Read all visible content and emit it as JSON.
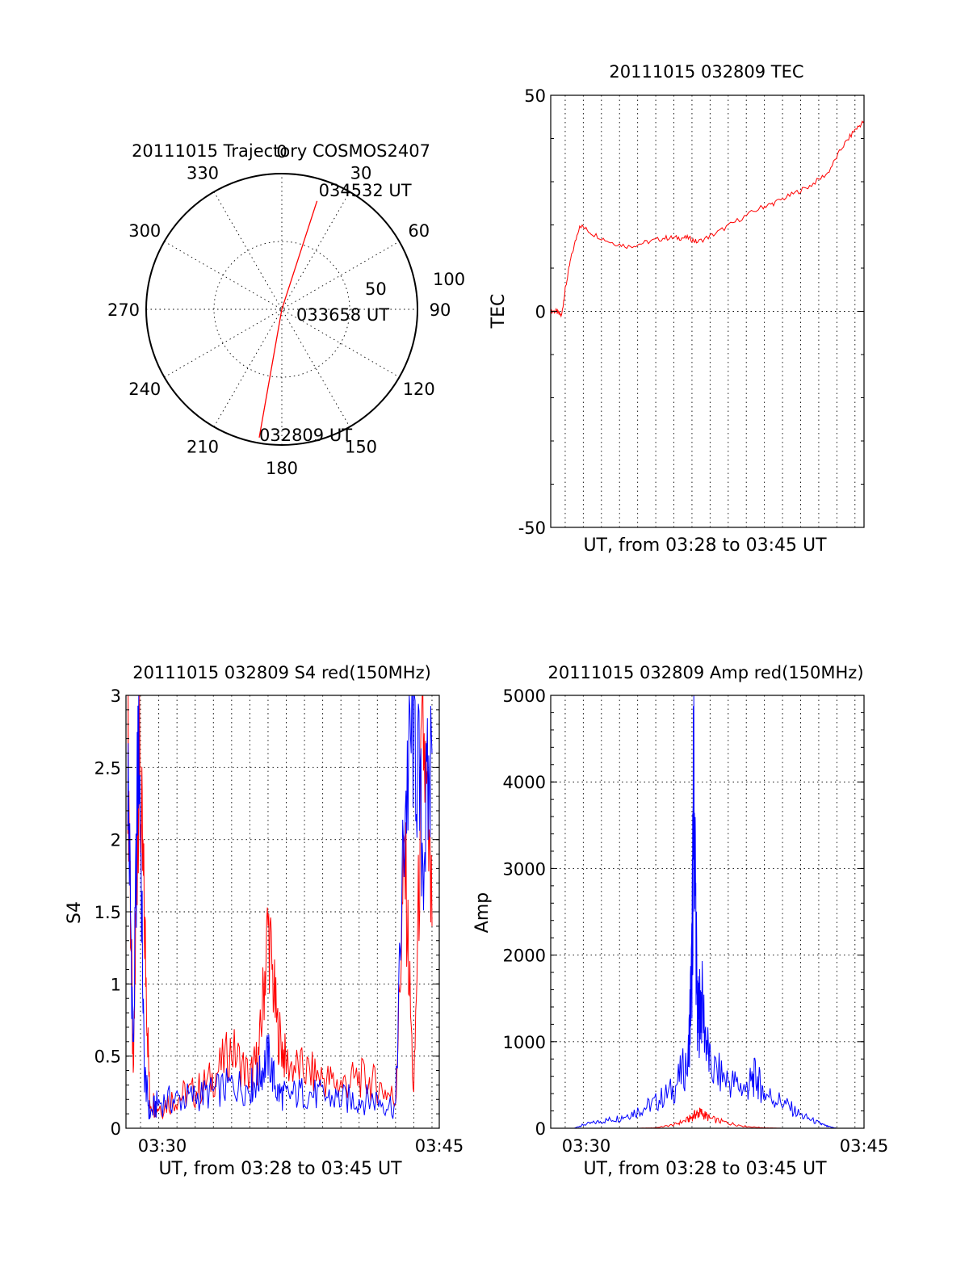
{
  "colors": {
    "red": "#ff0000",
    "blue": "#0000ff",
    "axis": "#000000"
  },
  "chart_data": [
    {
      "type": "polar",
      "title": "20111015 Trajectory COSMOS2407",
      "azimuth_labels": [
        "0",
        "30",
        "60",
        "90",
        "120",
        "150",
        "180",
        "210",
        "240",
        "270",
        "300",
        "330"
      ],
      "radial_labels": [
        "50",
        "100"
      ],
      "radial_range": [
        0,
        100
      ],
      "trajectory": {
        "color": "red",
        "points": [
          {
            "label": "032809 UT",
            "az": 190,
            "dist": 96
          },
          {
            "label": "033658 UT",
            "az": 0,
            "dist": 0
          },
          {
            "label": "034532 UT",
            "az": 18,
            "dist": 84
          }
        ]
      }
    },
    {
      "type": "line",
      "title": "20111015 032809 TEC",
      "xlabel": "UT, from 03:28 to 03:45 UT",
      "ylabel": "TEC",
      "xlim": [
        28.2,
        45.5
      ],
      "ylim": [
        -50,
        50
      ],
      "yticks": [
        "50",
        "0",
        "-50"
      ],
      "grid": true,
      "series": [
        {
          "color": "red",
          "x": [
            28.2,
            28.5,
            28.8,
            29.0,
            29.3,
            29.8,
            30.5,
            31.5,
            32.5,
            33.5,
            34.5,
            35.2,
            35.8,
            36.3,
            37.3,
            38.5,
            39.8,
            40.5,
            41.5,
            42.5,
            43.5,
            44.3,
            45.0,
            45.5
          ],
          "y": [
            0,
            0,
            -1,
            5,
            12,
            20,
            18,
            16,
            15,
            16,
            17,
            17,
            17,
            16,
            18,
            21,
            24,
            25,
            27,
            29,
            32,
            38,
            42,
            44
          ]
        }
      ]
    },
    {
      "type": "line",
      "title": "20111015 032809 S4 red(150MHz)",
      "xlabel": "UT, from 03:28 to 03:45 UT",
      "ylabel": "S4",
      "xlim": [
        28.2,
        45.4
      ],
      "ylim": [
        0,
        3
      ],
      "yticks": [
        "3",
        "2.5",
        "2",
        "1.5",
        "1",
        "0.5",
        "0"
      ],
      "xticks": [
        "03:30",
        "03:45"
      ],
      "grid": true,
      "series": [
        {
          "color": "red",
          "x": [
            28.3,
            28.6,
            28.9,
            29.2,
            29.5,
            30.0,
            31.0,
            32.0,
            33.0,
            34.0,
            35.0,
            35.5,
            36.0,
            36.5,
            37.0,
            38.0,
            39.0,
            40.0,
            41.0,
            42.0,
            43.0,
            43.5,
            44.0,
            44.5,
            45.0
          ],
          "y": [
            2.8,
            0.3,
            2.6,
            1.5,
            0.2,
            0.15,
            0.22,
            0.25,
            0.35,
            0.55,
            0.35,
            0.5,
            1.4,
            0.7,
            0.45,
            0.4,
            0.35,
            0.3,
            0.35,
            0.3,
            0.2,
            1.9,
            0.2,
            2.8,
            1.4
          ]
        },
        {
          "color": "blue",
          "x": [
            28.3,
            28.6,
            28.9,
            29.2,
            29.5,
            30.0,
            31.0,
            32.0,
            33.0,
            34.0,
            35.0,
            35.5,
            36.0,
            36.5,
            37.0,
            38.0,
            39.0,
            40.0,
            41.0,
            42.0,
            43.0,
            43.5,
            44.0,
            44.5,
            45.0
          ],
          "y": [
            2.5,
            0.5,
            2.9,
            0.4,
            0.1,
            0.18,
            0.2,
            0.22,
            0.25,
            0.3,
            0.28,
            0.35,
            0.5,
            0.25,
            0.22,
            0.25,
            0.22,
            0.2,
            0.2,
            0.2,
            0.15,
            2.2,
            2.9,
            1.9,
            2.6
          ]
        }
      ]
    },
    {
      "type": "line",
      "title": "20111015 032809 Amp red(150MHz)",
      "xlabel": "UT, from 03:28 to 03:45 UT",
      "ylabel": "Amp",
      "xlim": [
        28.2,
        45.5
      ],
      "ylim": [
        0,
        5000
      ],
      "yticks": [
        "5000",
        "4000",
        "3000",
        "2000",
        "1000",
        "0"
      ],
      "xticks": [
        "03:30",
        "03:45"
      ],
      "grid": true,
      "series": [
        {
          "color": "blue",
          "x": [
            28.2,
            29.5,
            30.0,
            31.0,
            32.0,
            33.0,
            34.0,
            35.0,
            35.8,
            36.0,
            36.1,
            36.3,
            36.5,
            37.0,
            38.0,
            39.0,
            39.5,
            40.0,
            41.0,
            42.0,
            43.0,
            43.5,
            44.0,
            45.5
          ],
          "y": [
            0,
            0,
            40,
            80,
            120,
            200,
            300,
            450,
            800,
            1900,
            4150,
            1200,
            1500,
            700,
            550,
            450,
            600,
            400,
            300,
            150,
            60,
            20,
            0,
            0
          ]
        },
        {
          "color": "red",
          "x": [
            28.2,
            33.0,
            34.0,
            35.0,
            35.8,
            36.2,
            36.5,
            37.0,
            38.0,
            39.0,
            40.0,
            41.0,
            45.5
          ],
          "y": [
            0,
            0,
            5,
            40,
            100,
            160,
            180,
            110,
            60,
            20,
            5,
            0,
            0
          ]
        }
      ]
    }
  ]
}
